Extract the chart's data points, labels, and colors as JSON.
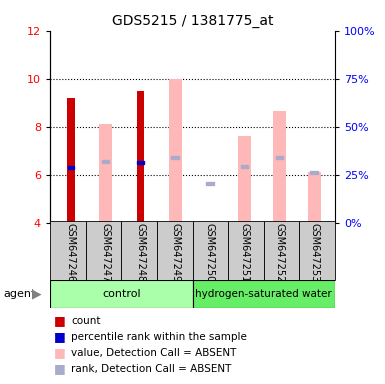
{
  "title": "GDS5215 / 1381775_at",
  "samples": [
    "GSM647246",
    "GSM647247",
    "GSM647248",
    "GSM647249",
    "GSM647250",
    "GSM647251",
    "GSM647252",
    "GSM647253"
  ],
  "ylim": [
    4,
    12
  ],
  "ylim_right": [
    0,
    100
  ],
  "y_ticks_left": [
    4,
    6,
    8,
    10,
    12
  ],
  "y_ticks_right": [
    0,
    25,
    50,
    75,
    100
  ],
  "dotted_lines": [
    6,
    8,
    10
  ],
  "bar_bottom": 4,
  "count_values": [
    9.2,
    null,
    9.5,
    null,
    null,
    null,
    null,
    null
  ],
  "rank_values": [
    6.3,
    null,
    6.5,
    null,
    null,
    null,
    null,
    null
  ],
  "absent_value_values": [
    null,
    8.1,
    null,
    10.0,
    null,
    7.6,
    8.65,
    6.1
  ],
  "absent_rank_values": [
    null,
    6.55,
    null,
    6.7,
    5.65,
    6.35,
    6.7,
    6.1
  ],
  "count_color": "#cc0000",
  "rank_color": "#0000cc",
  "absent_value_color": "#ffb8b8",
  "absent_rank_color": "#aaaacc",
  "label_bg_color": "#cccccc",
  "ctrl_color": "#aaffaa",
  "hydro_color": "#66ee66",
  "legend": [
    {
      "label": "count",
      "color": "#cc0000"
    },
    {
      "label": "percentile rank within the sample",
      "color": "#0000cc"
    },
    {
      "label": "value, Detection Call = ABSENT",
      "color": "#ffb8b8"
    },
    {
      "label": "rank, Detection Call = ABSENT",
      "color": "#aaaacc"
    }
  ]
}
